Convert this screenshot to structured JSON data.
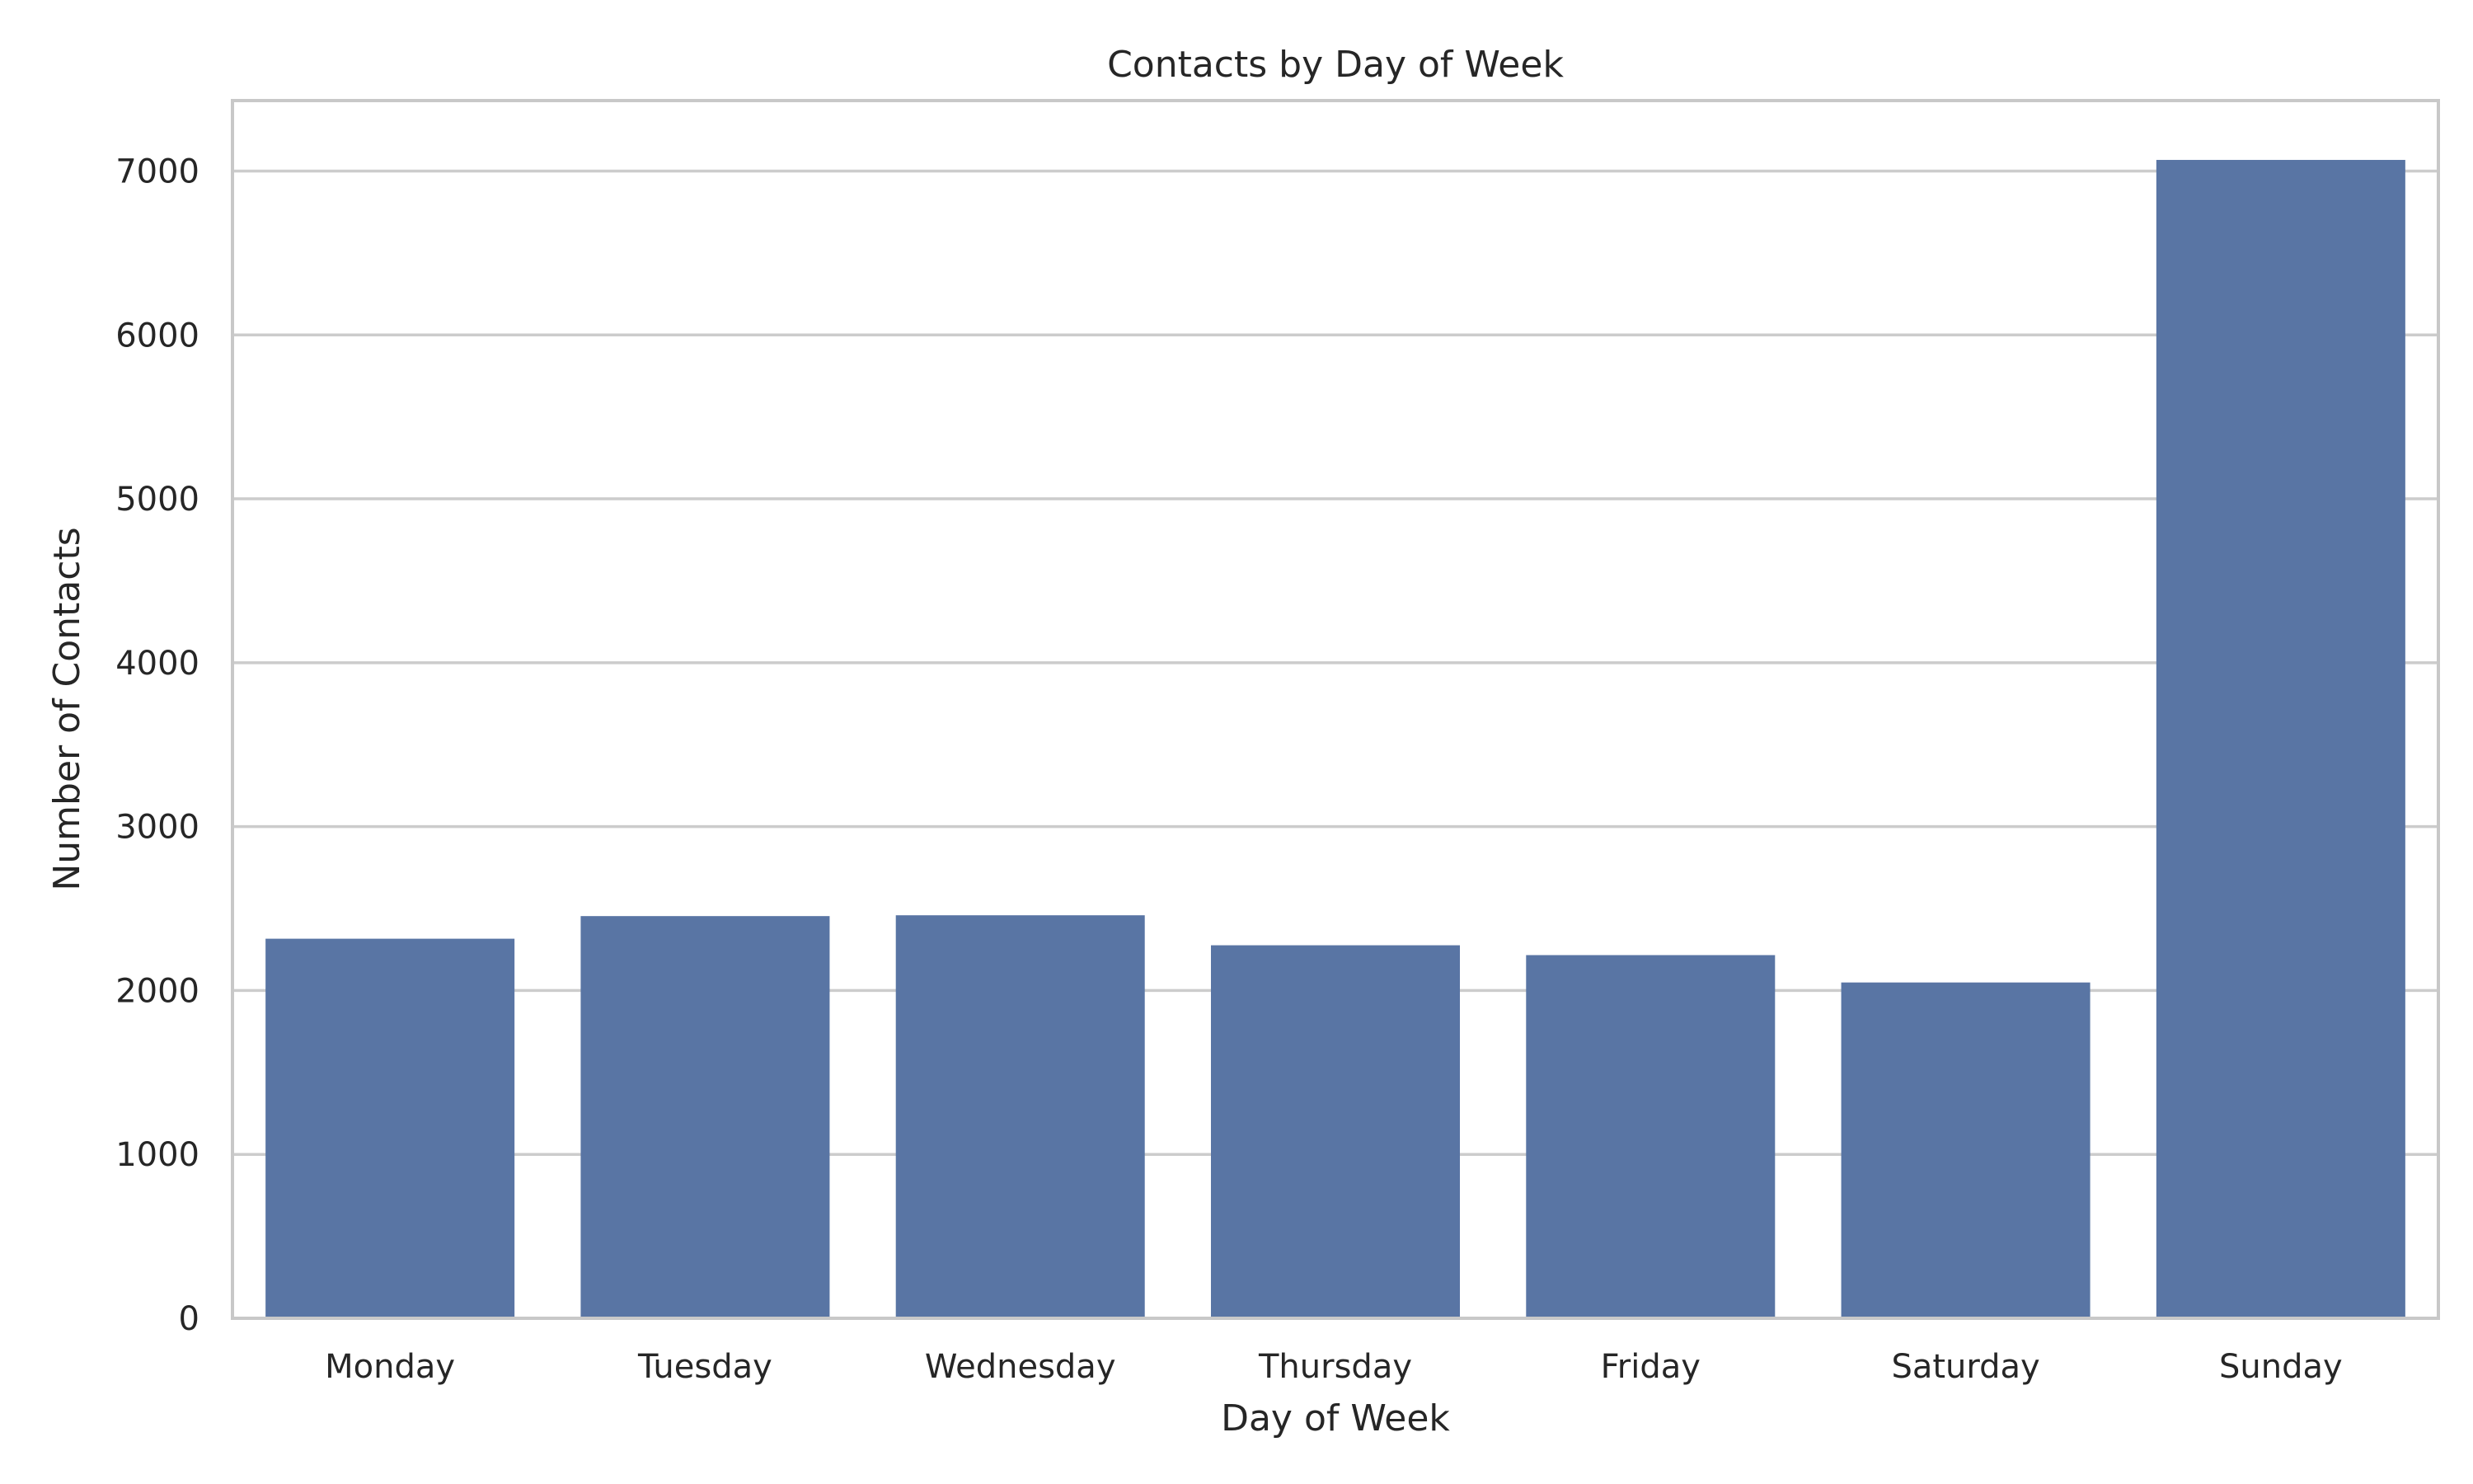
{
  "chart_data": {
    "type": "bar",
    "title": "Contacts by Day of Week",
    "xlabel": "Day of Week",
    "ylabel": "Number of Contacts",
    "categories": [
      "Monday",
      "Tuesday",
      "Wednesday",
      "Thursday",
      "Friday",
      "Saturday",
      "Sunday"
    ],
    "values": [
      2316,
      2454,
      2459,
      2276,
      2216,
      2049,
      7068
    ],
    "ylim": [
      0,
      7430
    ],
    "yticks": [
      0,
      1000,
      2000,
      3000,
      4000,
      5000,
      6000,
      7000
    ],
    "ytick_labels": [
      "0",
      "1000",
      "2000",
      "3000",
      "4000",
      "5000",
      "6000",
      "7000"
    ],
    "bar_color": "#5975a4",
    "grid": "horizontal",
    "legend": "none"
  }
}
